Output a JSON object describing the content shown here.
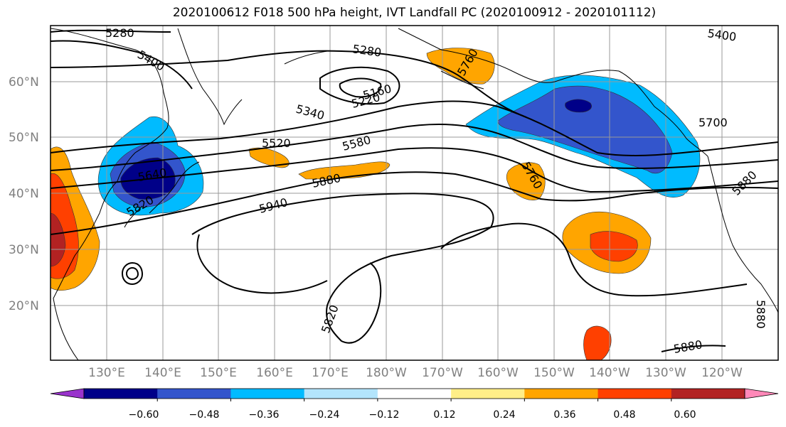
{
  "title": "2020100612 F018 500 hPa height, IVT Landfall PC (2020100912 - 2020101112)",
  "lat_labels": [
    "60°N",
    "50°N",
    "40°N",
    "30°N",
    "20°N"
  ],
  "lon_labels": [
    "130°E",
    "140°E",
    "150°E",
    "160°E",
    "170°E",
    "180°W",
    "170°W",
    "160°W",
    "150°W",
    "140°W",
    "130°W",
    "120°W"
  ],
  "contour_labels": [
    "5280",
    "5400",
    "5280",
    "5160",
    "5220",
    "5340",
    "5520",
    "5580",
    "5640",
    "5820",
    "5880",
    "5940",
    "5760",
    "5700",
    "5400",
    "5880",
    "5760",
    "5820",
    "5880",
    "5880"
  ],
  "colorbar": {
    "ticks": [
      "−0.60",
      "−0.48",
      "−0.36",
      "−0.24",
      "−0.12",
      "0.12",
      "0.24",
      "0.36",
      "0.48",
      "0.60"
    ],
    "colors": [
      "#9933cc",
      "#000088",
      "#3355cc",
      "#00bbff",
      "#b3e5fc",
      "#ffffff",
      "#ffee88",
      "#ffa500",
      "#ff4000",
      "#b22222",
      "#ff88b8"
    ]
  },
  "fill_colors": {
    "neg1": "#b3e5fc",
    "neg2": "#00bbff",
    "neg3": "#3355cc",
    "neg4": "#000088",
    "pos1": "#ffee88",
    "pos2": "#ffa500",
    "pos3": "#ff4000",
    "pos4": "#b22222"
  }
}
